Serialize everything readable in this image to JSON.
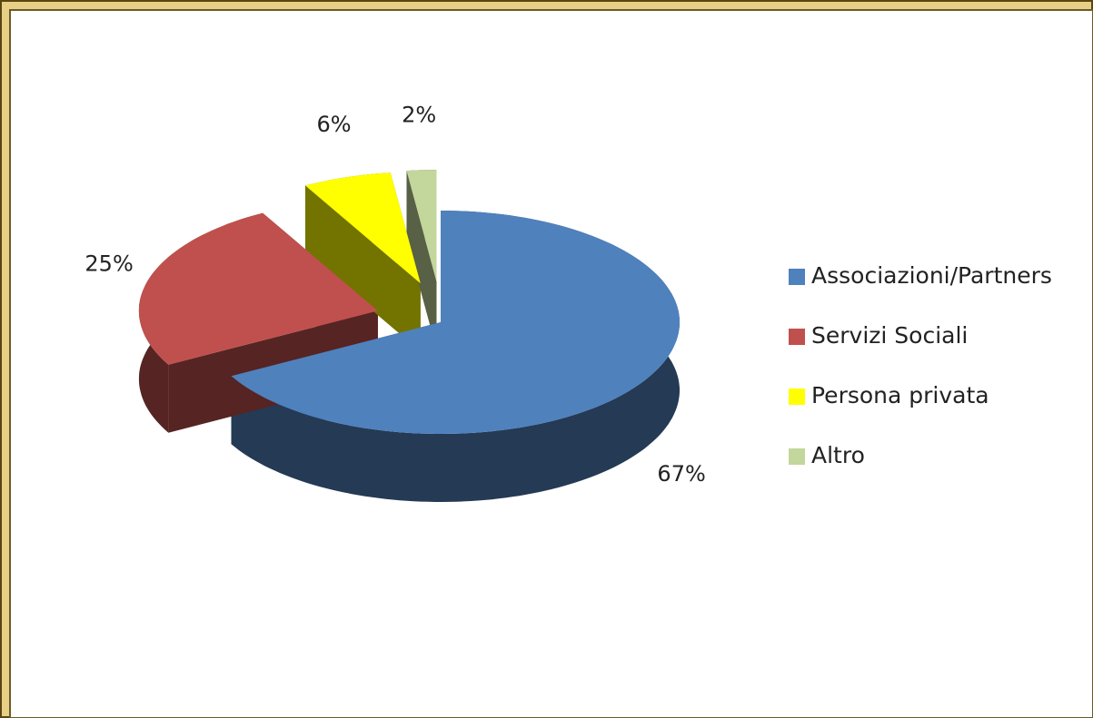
{
  "chart_data": {
    "type": "pie3d",
    "categories": [
      "Associazioni/Partners",
      "Servizi Sociali",
      "Persona privata",
      "Altro"
    ],
    "values": [
      67,
      25,
      6,
      2
    ],
    "value_labels": [
      "67%",
      "25%",
      "6%",
      "2%"
    ],
    "colors": [
      "#4f81bd",
      "#c0504d",
      "#ffff00",
      "#c3d69b"
    ],
    "legend": "right"
  }
}
